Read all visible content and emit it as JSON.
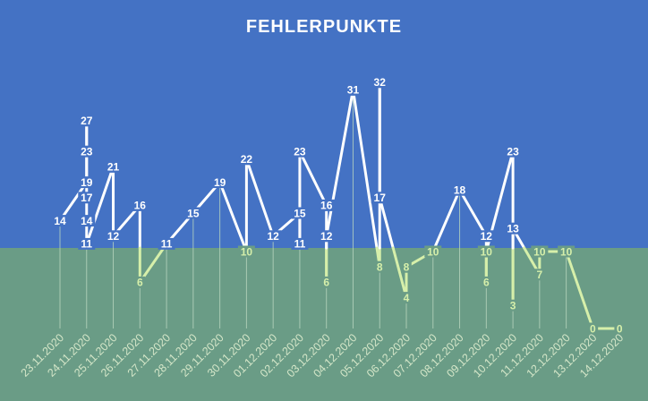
{
  "colors": {
    "upper_background": "#4472c4",
    "lower_background": "#6a9c86",
    "line_upper": "#ffffff",
    "line_lower": "#d6efaa",
    "drop_line": "#b9d6bf"
  },
  "chart_data": {
    "type": "line",
    "title": "FEHLERPUNKTE",
    "xlabel": "",
    "ylabel": "",
    "grid": false,
    "legend": "none",
    "categories": [
      "23.11.2020",
      "24.11.2020",
      "25.11.2020",
      "26.11.2020",
      "27.11.2020",
      "28.11.2020",
      "29.11.2020",
      "30.11.2020",
      "01.12.2020",
      "02.12.2020",
      "03.12.2020",
      "04.12.2020",
      "05.12.2020",
      "06.12.2020",
      "07.12.2020",
      "08.12.2020",
      "09.12.2020",
      "10.12.2020",
      "11.12.2020",
      "12.12.2020",
      "13.12.2020",
      "14.12.2020"
    ],
    "points": [
      {
        "x": "23.11.2020",
        "y": 14
      },
      {
        "x": "24.11.2020",
        "y": 19
      },
      {
        "x": "24.11.2020",
        "y": 23
      },
      {
        "x": "24.11.2020",
        "y": 27
      },
      {
        "x": "24.11.2020",
        "y": 17
      },
      {
        "x": "24.11.2020",
        "y": 14
      },
      {
        "x": "24.11.2020",
        "y": 11
      },
      {
        "x": "25.11.2020",
        "y": 21
      },
      {
        "x": "25.11.2020",
        "y": 12
      },
      {
        "x": "26.11.2020",
        "y": 16
      },
      {
        "x": "26.11.2020",
        "y": 6
      },
      {
        "x": "27.11.2020",
        "y": 11
      },
      {
        "x": "28.11.2020",
        "y": 15
      },
      {
        "x": "29.11.2020",
        "y": 19
      },
      {
        "x": "30.11.2020",
        "y": 10
      },
      {
        "x": "30.11.2020",
        "y": 22
      },
      {
        "x": "01.12.2020",
        "y": 12
      },
      {
        "x": "02.12.2020",
        "y": 15
      },
      {
        "x": "02.12.2020",
        "y": 11
      },
      {
        "x": "02.12.2020",
        "y": 23
      },
      {
        "x": "03.12.2020",
        "y": 16
      },
      {
        "x": "03.12.2020",
        "y": 6
      },
      {
        "x": "03.12.2020",
        "y": 12
      },
      {
        "x": "04.12.2020",
        "y": 31
      },
      {
        "x": "05.12.2020",
        "y": 8
      },
      {
        "x": "05.12.2020",
        "y": 32
      },
      {
        "x": "05.12.2020",
        "y": 17
      },
      {
        "x": "06.12.2020",
        "y": 4
      },
      {
        "x": "06.12.2020",
        "y": 8
      },
      {
        "x": "07.12.2020",
        "y": 10
      },
      {
        "x": "08.12.2020",
        "y": 18
      },
      {
        "x": "09.12.2020",
        "y": 12
      },
      {
        "x": "09.12.2020",
        "y": 6
      },
      {
        "x": "09.12.2020",
        "y": 10
      },
      {
        "x": "10.12.2020",
        "y": 23
      },
      {
        "x": "10.12.2020",
        "y": 3
      },
      {
        "x": "10.12.2020",
        "y": 13
      },
      {
        "x": "11.12.2020",
        "y": 7
      },
      {
        "x": "11.12.2020",
        "y": 10
      },
      {
        "x": "12.12.2020",
        "y": 10
      },
      {
        "x": "13.12.2020",
        "y": 0
      },
      {
        "x": "14.12.2020",
        "y": 0
      }
    ]
  }
}
